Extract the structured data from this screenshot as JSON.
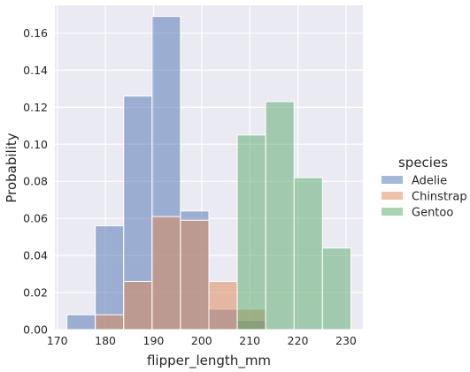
{
  "chart_data": {
    "type": "bar",
    "subtype": "histogram",
    "title": "",
    "xlabel": "flipper_length_mm",
    "ylabel": "Probability",
    "xlim": [
      169.5,
      233.5
    ],
    "ylim": [
      0,
      0.175
    ],
    "xticks": [
      170,
      180,
      190,
      200,
      210,
      220,
      230
    ],
    "yticks": [
      0.0,
      0.02,
      0.04,
      0.06,
      0.08,
      0.1,
      0.12,
      0.14,
      0.16
    ],
    "ytick_labels": [
      "0.00",
      "0.02",
      "0.04",
      "0.06",
      "0.08",
      "0.10",
      "0.12",
      "0.14",
      "0.16"
    ],
    "grid": true,
    "legend": {
      "title": "species",
      "placement": "right"
    },
    "bin_edges": [
      172,
      177.9,
      183.8,
      189.7,
      195.6,
      201.5,
      207.4,
      213.3,
      219.2,
      225.1,
      231
    ],
    "series": [
      {
        "name": "Adelie",
        "color": "#4c72b0",
        "values": [
          0.008,
          0.056,
          0.126,
          0.169,
          0.064,
          0.011,
          0.005,
          0,
          0,
          0
        ]
      },
      {
        "name": "Chinstrap",
        "color": "#dd8452",
        "values": [
          0,
          0.008,
          0.026,
          0.061,
          0.059,
          0.026,
          0.011,
          0,
          0,
          0
        ]
      },
      {
        "name": "Gentoo",
        "color": "#55a868",
        "values": [
          0,
          0,
          0,
          0,
          0,
          0,
          0.105,
          0.123,
          0.082,
          0.044
        ]
      }
    ]
  }
}
